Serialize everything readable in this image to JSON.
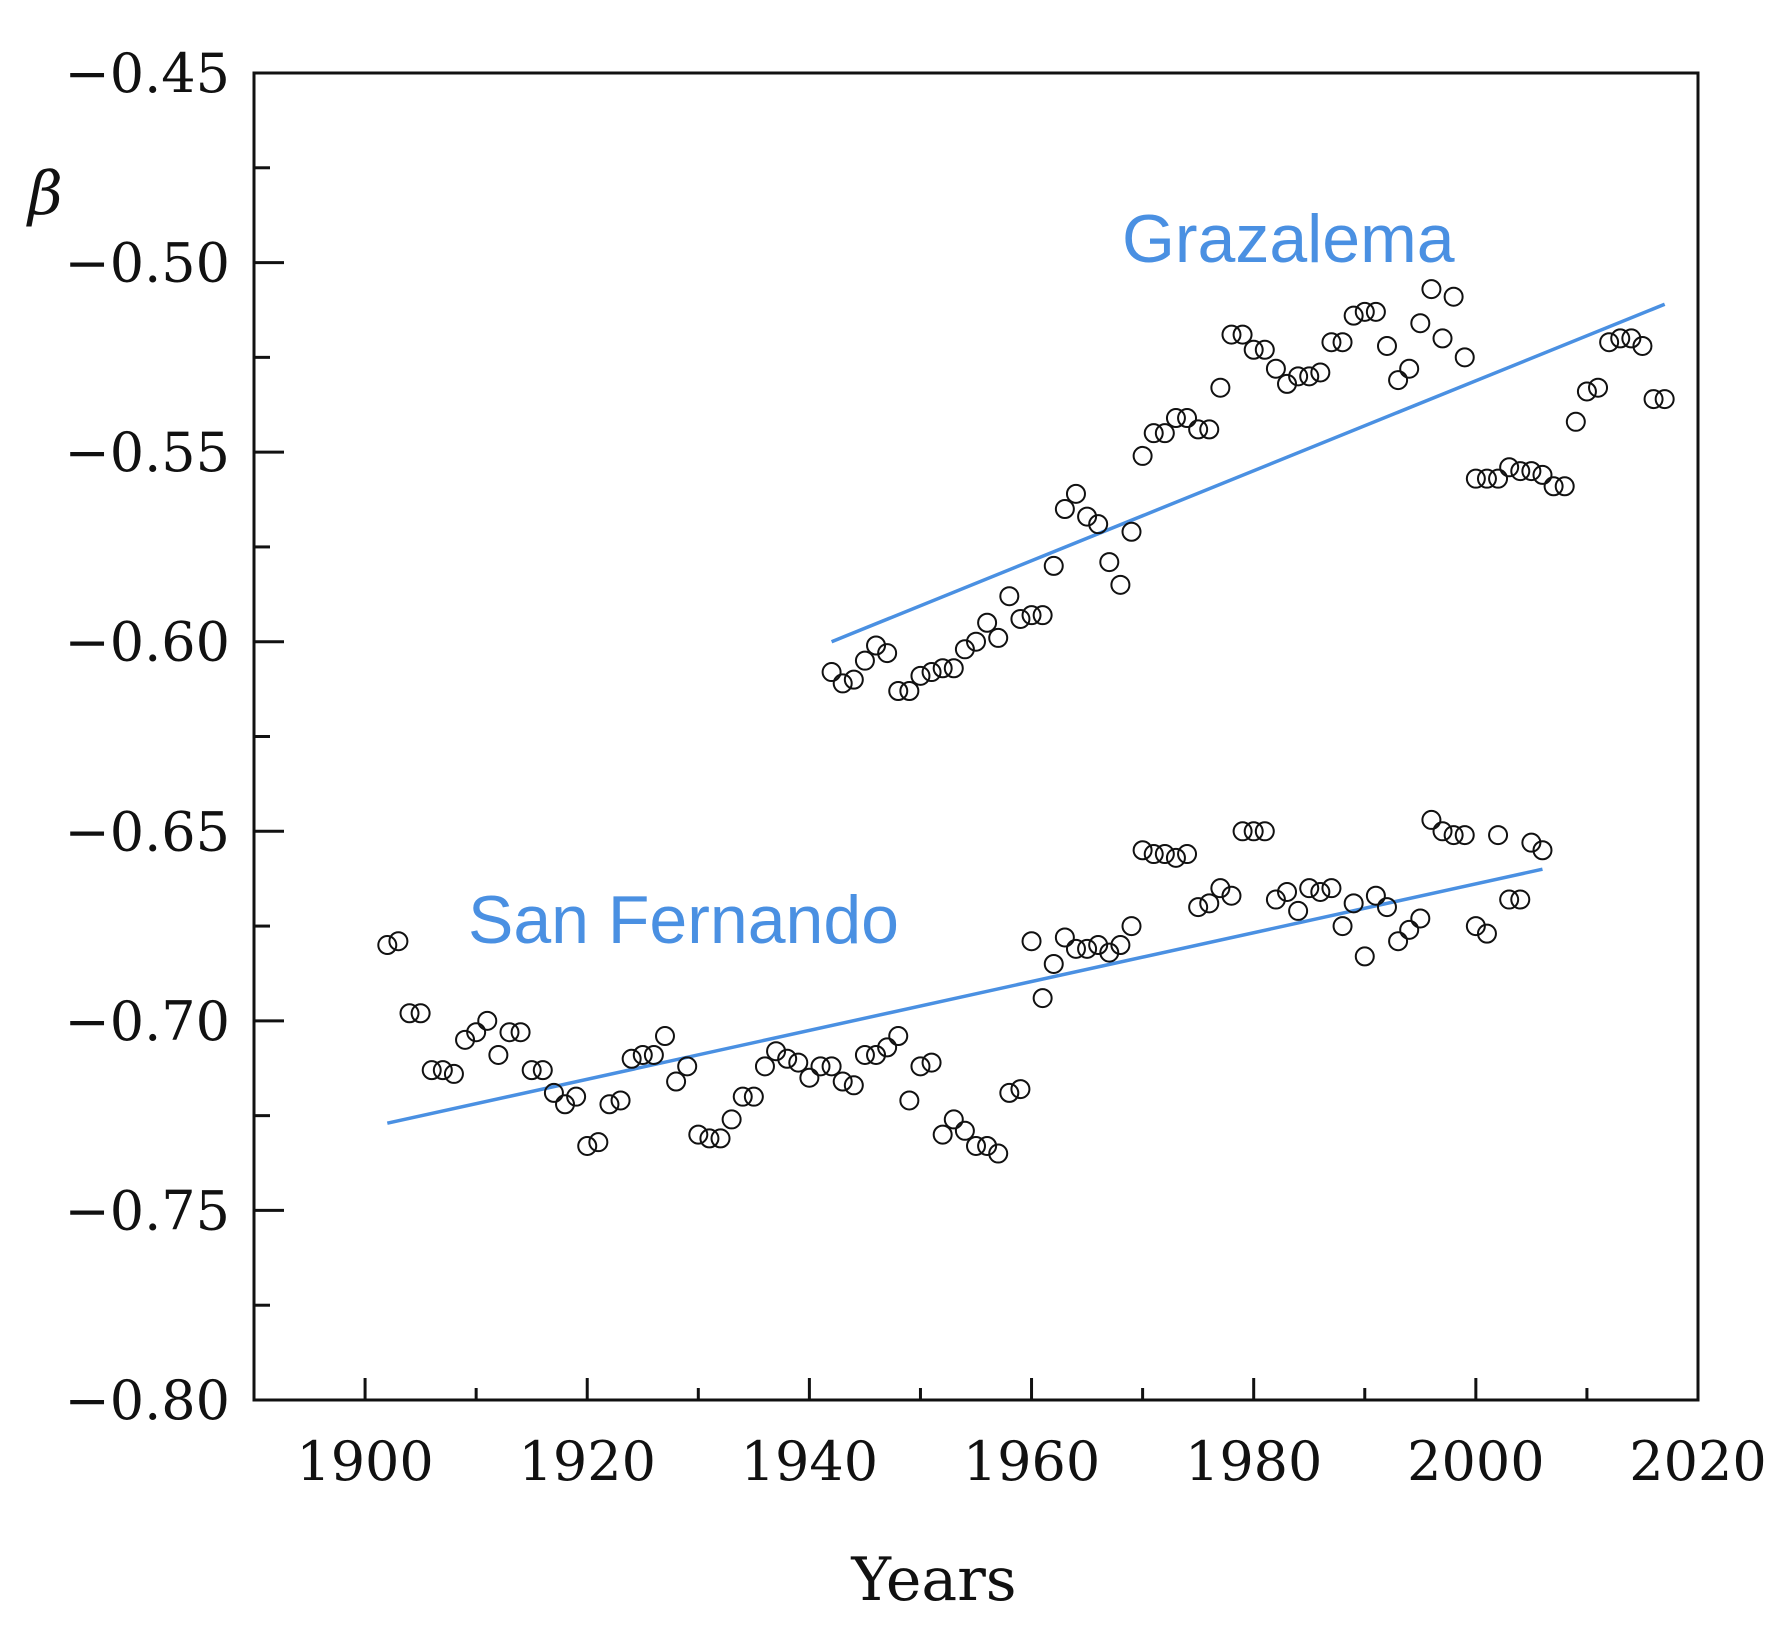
{
  "chart_data": {
    "type": "scatter",
    "title": "",
    "xlabel": "Years",
    "ylabel": "β",
    "xlim": [
      1890,
      2020
    ],
    "ylim": [
      -0.8,
      -0.45
    ],
    "xticks": [
      1900,
      1920,
      1940,
      1960,
      1980,
      2000,
      2020
    ],
    "xtick_labels": [
      "1900",
      "1920",
      "1940",
      "1960",
      "1980",
      "2000",
      "2020"
    ],
    "yticks": [
      -0.45,
      -0.5,
      -0.55,
      -0.6,
      -0.65,
      -0.7,
      -0.75,
      -0.8
    ],
    "ytick_labels": [
      "−0.45",
      "−0.50",
      "−0.55",
      "−0.60",
      "−0.65",
      "−0.70",
      "−0.75",
      "−0.80"
    ],
    "minor_ytick_step": 0.025,
    "grid": false,
    "colors": {
      "trend": "#4a90e2",
      "label": "#4a90e2",
      "points": "#111111",
      "axes": "#111111"
    },
    "series": [
      {
        "name": "Grazalema",
        "label": "Grazalema",
        "trend": {
          "x": [
            1942,
            2017
          ],
          "y": [
            -0.6,
            -0.511
          ]
        },
        "x": [
          1942,
          1943,
          1944,
          1945,
          1946,
          1947,
          1948,
          1949,
          1950,
          1951,
          1952,
          1953,
          1954,
          1955,
          1956,
          1957,
          1958,
          1959,
          1960,
          1961,
          1962,
          1963,
          1964,
          1965,
          1966,
          1967,
          1968,
          1969,
          1970,
          1971,
          1972,
          1973,
          1974,
          1975,
          1976,
          1977,
          1978,
          1979,
          1980,
          1981,
          1982,
          1983,
          1984,
          1985,
          1986,
          1987,
          1988,
          1989,
          1990,
          1991,
          1992,
          1993,
          1994,
          1995,
          1996,
          1997,
          1998,
          1999,
          2000,
          2001,
          2002,
          2003,
          2004,
          2005,
          2006,
          2007,
          2008,
          2009,
          2010,
          2011,
          2012,
          2013,
          2014,
          2015,
          2016,
          2017
        ],
        "y": [
          -0.608,
          -0.611,
          -0.61,
          -0.605,
          -0.601,
          -0.603,
          -0.613,
          -0.613,
          -0.609,
          -0.608,
          -0.607,
          -0.607,
          -0.602,
          -0.6,
          -0.595,
          -0.599,
          -0.588,
          -0.594,
          -0.593,
          -0.593,
          -0.58,
          -0.565,
          -0.561,
          -0.567,
          -0.569,
          -0.579,
          -0.585,
          -0.571,
          -0.551,
          -0.545,
          -0.545,
          -0.541,
          -0.541,
          -0.544,
          -0.544,
          -0.533,
          -0.519,
          -0.519,
          -0.523,
          -0.523,
          -0.528,
          -0.532,
          -0.53,
          -0.53,
          -0.529,
          -0.521,
          -0.521,
          -0.514,
          -0.513,
          -0.513,
          -0.522,
          -0.531,
          -0.528,
          -0.516,
          -0.507,
          -0.52,
          -0.509,
          -0.525,
          -0.557,
          -0.557,
          -0.557,
          -0.554,
          -0.555,
          -0.555,
          -0.556,
          -0.559,
          -0.559,
          -0.542,
          -0.534,
          -0.533,
          -0.521,
          -0.52,
          -0.52,
          -0.522,
          -0.536,
          -0.536
        ]
      },
      {
        "name": "San Fernando",
        "label": "San Fernando",
        "trend": {
          "x": [
            1902,
            2006
          ],
          "y": [
            -0.727,
            -0.66
          ]
        },
        "x": [
          1902,
          1903,
          1904,
          1905,
          1906,
          1907,
          1908,
          1909,
          1910,
          1911,
          1912,
          1913,
          1914,
          1915,
          1916,
          1917,
          1918,
          1919,
          1920,
          1921,
          1922,
          1923,
          1924,
          1925,
          1926,
          1927,
          1928,
          1929,
          1930,
          1931,
          1932,
          1933,
          1934,
          1935,
          1936,
          1937,
          1938,
          1939,
          1940,
          1941,
          1942,
          1943,
          1944,
          1945,
          1946,
          1947,
          1948,
          1949,
          1950,
          1951,
          1952,
          1953,
          1954,
          1955,
          1956,
          1957,
          1958,
          1959,
          1960,
          1961,
          1962,
          1963,
          1964,
          1965,
          1966,
          1967,
          1968,
          1969,
          1970,
          1971,
          1972,
          1973,
          1974,
          1975,
          1976,
          1977,
          1978,
          1979,
          1980,
          1981,
          1982,
          1983,
          1984,
          1985,
          1986,
          1987,
          1988,
          1989,
          1990,
          1991,
          1992,
          1993,
          1994,
          1995,
          1996,
          1997,
          1998,
          1999,
          2000,
          2001,
          2002,
          2003,
          2004,
          2005,
          2006
        ],
        "y": [
          -0.68,
          -0.679,
          -0.698,
          -0.698,
          -0.713,
          -0.713,
          -0.714,
          -0.705,
          -0.703,
          -0.7,
          -0.709,
          -0.703,
          -0.703,
          -0.713,
          -0.713,
          -0.719,
          -0.722,
          -0.72,
          -0.733,
          -0.732,
          -0.722,
          -0.721,
          -0.71,
          -0.709,
          -0.709,
          -0.704,
          -0.716,
          -0.712,
          -0.73,
          -0.731,
          -0.731,
          -0.726,
          -0.72,
          -0.72,
          -0.712,
          -0.708,
          -0.71,
          -0.711,
          -0.715,
          -0.712,
          -0.712,
          -0.716,
          -0.717,
          -0.709,
          -0.709,
          -0.707,
          -0.704,
          -0.721,
          -0.712,
          -0.711,
          -0.73,
          -0.726,
          -0.729,
          -0.733,
          -0.733,
          -0.735,
          -0.719,
          -0.718,
          -0.679,
          -0.694,
          -0.685,
          -0.678,
          -0.681,
          -0.681,
          -0.68,
          -0.682,
          -0.68,
          -0.675,
          -0.655,
          -0.656,
          -0.656,
          -0.657,
          -0.656,
          -0.67,
          -0.669,
          -0.665,
          -0.667,
          -0.65,
          -0.65,
          -0.65,
          -0.668,
          -0.666,
          -0.671,
          -0.665,
          -0.666,
          -0.665,
          -0.675,
          -0.669,
          -0.683,
          -0.667,
          -0.67,
          -0.679,
          -0.676,
          -0.673,
          -0.647,
          -0.65,
          -0.651,
          -0.651,
          -0.675,
          -0.677,
          -0.651,
          -0.668,
          -0.668,
          -0.653,
          -0.655
        ]
      }
    ]
  }
}
